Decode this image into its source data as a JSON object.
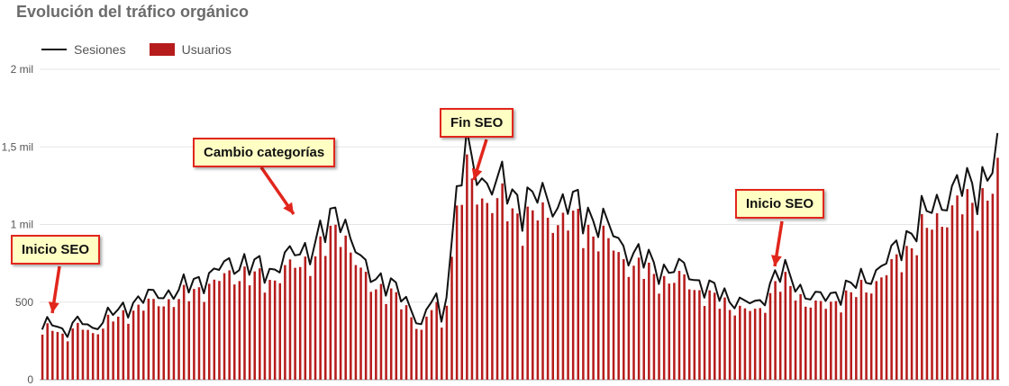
{
  "chart_data": {
    "type": "bar",
    "title": "Evolución del tráfico orgánico",
    "legend": {
      "position": "top-left",
      "items": [
        {
          "name": "Sesiones",
          "kind": "line",
          "color": "#111111"
        },
        {
          "name": "Usuarios",
          "kind": "bar",
          "color": "#b71c1c"
        }
      ]
    },
    "ylim": [
      0,
      2000
    ],
    "yticks": [
      0,
      500,
      1000,
      1500,
      2000
    ],
    "ytick_labels": [
      "0",
      "500",
      "1 mil",
      "1,5 mil",
      "2 mil"
    ],
    "grid": true,
    "x_points": 190,
    "series": [
      {
        "name": "Sesiones",
        "type": "line",
        "anchors": [
          [
            0,
            320
          ],
          [
            3,
            390
          ],
          [
            6,
            300
          ],
          [
            10,
            380
          ],
          [
            14,
            330
          ],
          [
            18,
            420
          ],
          [
            22,
            450
          ],
          [
            26,
            520
          ],
          [
            30,
            540
          ],
          [
            34,
            560
          ],
          [
            38,
            580
          ],
          [
            42,
            640
          ],
          [
            46,
            670
          ],
          [
            50,
            740
          ],
          [
            54,
            760
          ],
          [
            58,
            720
          ],
          [
            62,
            700
          ],
          [
            66,
            780
          ],
          [
            70,
            820
          ],
          [
            74,
            880
          ],
          [
            78,
            980
          ],
          [
            80,
            1090
          ],
          [
            82,
            1080
          ],
          [
            84,
            900
          ],
          [
            88,
            700
          ],
          [
            92,
            660
          ],
          [
            96,
            580
          ],
          [
            100,
            480
          ],
          [
            103,
            350
          ],
          [
            105,
            440
          ],
          [
            107,
            580
          ],
          [
            109,
            300
          ],
          [
            110,
            620
          ],
          [
            112,
            980
          ],
          [
            113,
            1250
          ],
          [
            115,
            1450
          ],
          [
            117,
            1380
          ],
          [
            120,
            1300
          ],
          [
            125,
            1250
          ],
          [
            130,
            1150
          ],
          [
            135,
            1170
          ],
          [
            140,
            1150
          ],
          [
            145,
            1120
          ],
          [
            150,
            1050
          ],
          [
            155,
            950
          ],
          [
            160,
            820
          ],
          [
            165,
            760
          ],
          [
            170,
            700
          ],
          [
            175,
            720
          ],
          [
            180,
            600
          ],
          [
            185,
            550
          ],
          [
            190,
            500
          ],
          [
            195,
            480
          ],
          [
            200,
            700
          ],
          [
            204,
            650
          ],
          [
            208,
            550
          ],
          [
            212,
            520
          ],
          [
            216,
            560
          ],
          [
            220,
            600
          ],
          [
            224,
            650
          ],
          [
            228,
            720
          ],
          [
            232,
            820
          ],
          [
            236,
            950
          ],
          [
            240,
            1050
          ],
          [
            244,
            1150
          ],
          [
            248,
            1220
          ],
          [
            252,
            1250
          ],
          [
            256,
            1280
          ],
          [
            258,
            1350
          ],
          [
            260,
            1400
          ]
        ]
      },
      {
        "name": "Usuarios",
        "type": "bar",
        "ratio_to_sesiones": 0.9
      }
    ],
    "annotations": [
      {
        "text": "Inicio SEO"
      },
      {
        "text": "Cambio categorías"
      },
      {
        "text": "Fin SEO"
      },
      {
        "text": "Inicio SEO"
      }
    ]
  }
}
